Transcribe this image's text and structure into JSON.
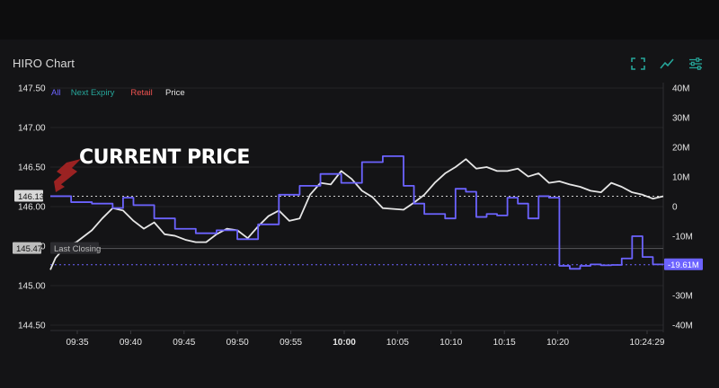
{
  "header": {
    "title": "HIRO Chart",
    "icons": [
      "expand-icon",
      "line-chart-icon",
      "settings-sliders-icon"
    ]
  },
  "colors": {
    "background": "#141416",
    "all": "#6c63ff",
    "next_expiry": "#26a69a",
    "retail": "#ef5350",
    "price": "#e6e6e6",
    "toolbar": "#26a69a",
    "arrow": "#9b2222"
  },
  "legend": [
    {
      "label": "All",
      "color": "#6c63ff"
    },
    {
      "label": "Next Expiry",
      "color": "#26a69a"
    },
    {
      "label": "Retail",
      "color": "#ef5350"
    },
    {
      "label": "Price",
      "color": "#e6e6e6"
    }
  ],
  "annotation": {
    "text": "CURRENT PRICE"
  },
  "badges": {
    "current_price": "146.13",
    "last_close_price": "145.47",
    "last_close_label": "Last Closing",
    "hiro_value": "-19.61M"
  },
  "chart_data": {
    "type": "line",
    "left_axis": {
      "ticks": [
        "147.50",
        "147.00",
        "146.50",
        "146.00",
        "145.50",
        "145.00",
        "144.50"
      ],
      "range": [
        144.5,
        147.5
      ]
    },
    "right_axis": {
      "ticks": [
        "40M",
        "30M",
        "20M",
        "10M",
        "0",
        "-10M",
        "-20M",
        "-30M",
        "-40M"
      ],
      "range": [
        -40,
        40
      ],
      "unit": "M"
    },
    "x_axis": {
      "ticks": [
        "09:35",
        "09:40",
        "09:45",
        "09:50",
        "09:55",
        "10:00",
        "10:05",
        "10:10",
        "10:15",
        "10:20",
        "10:24:29"
      ],
      "bold_tick": "10:00",
      "range_minutes": [
        0,
        59
      ]
    },
    "grid": "horizontal",
    "reference_lines": [
      {
        "name": "current price",
        "value": 146.13,
        "style": "dotted"
      },
      {
        "name": "last closing",
        "value": 145.47,
        "style": "solid"
      },
      {
        "name": "hiro current",
        "value": -19.61,
        "axis": "right",
        "style": "dotted"
      }
    ],
    "series": [
      {
        "name": "Price",
        "axis": "left",
        "x": [
          0,
          0.5,
          1.5,
          2.5,
          4,
          5,
          6,
          7,
          8,
          9,
          10,
          11,
          12,
          13,
          14,
          15,
          16,
          17,
          18,
          19,
          20,
          21,
          22,
          23,
          24,
          25,
          26,
          27,
          28,
          29,
          30,
          31,
          32,
          33,
          34,
          35,
          36,
          37,
          38,
          39,
          40,
          41,
          42,
          43,
          44,
          45,
          46,
          47,
          48,
          49,
          50,
          51,
          52,
          53,
          54,
          55,
          56,
          57,
          58,
          59
        ],
        "values": [
          145.2,
          145.35,
          145.5,
          145.55,
          145.7,
          145.85,
          145.98,
          145.95,
          145.82,
          145.72,
          145.8,
          145.65,
          145.63,
          145.58,
          145.55,
          145.55,
          145.65,
          145.72,
          145.7,
          145.6,
          145.75,
          145.88,
          145.95,
          145.82,
          145.85,
          146.15,
          146.3,
          146.28,
          146.45,
          146.35,
          146.2,
          146.12,
          145.98,
          145.97,
          145.96,
          146.05,
          146.15,
          146.3,
          146.42,
          146.5,
          146.6,
          146.48,
          146.5,
          146.45,
          146.45,
          146.48,
          146.38,
          146.42,
          146.3,
          146.32,
          146.28,
          146.25,
          146.2,
          146.18,
          146.3,
          146.25,
          146.18,
          146.15,
          146.1,
          146.13
        ]
      },
      {
        "name": "All",
        "axis": "right",
        "unit": "M",
        "x": [
          0,
          2,
          4,
          6,
          7,
          8,
          10,
          12,
          14,
          16,
          18,
          20,
          22,
          24,
          26,
          28,
          30,
          32,
          34,
          35,
          36,
          38,
          39,
          40,
          41,
          42,
          43,
          44,
          45,
          46,
          47,
          48,
          49,
          50,
          51,
          52,
          53,
          54,
          55,
          56,
          57,
          58,
          59
        ],
        "values": [
          3.5,
          1.5,
          1,
          -0.5,
          3,
          0.5,
          -4,
          -7.5,
          -9,
          -8,
          -11,
          -6,
          4,
          7,
          11,
          8,
          15,
          17,
          7,
          1,
          -2.5,
          -4,
          6,
          5,
          -3.5,
          -2.5,
          -3,
          3,
          1,
          -4,
          3.5,
          3,
          -20,
          -21,
          -20,
          -19.5,
          -19.8,
          -19.7,
          -17.5,
          -10,
          -17,
          -19.5,
          -19.61
        ]
      }
    ]
  }
}
